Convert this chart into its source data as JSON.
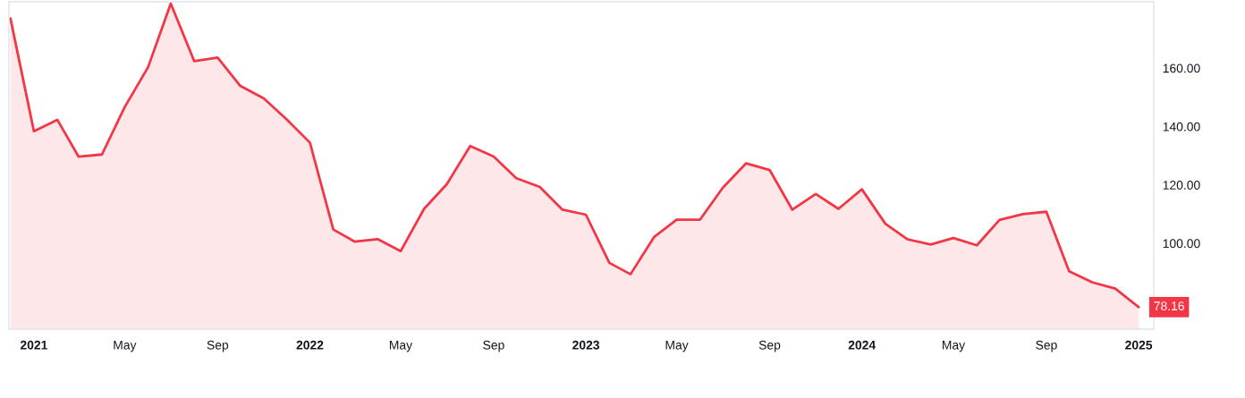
{
  "chart_data": {
    "type": "area",
    "x": [
      "2020-12",
      "2021-01",
      "2021-02",
      "2021-03",
      "2021-04",
      "2021-05",
      "2021-06",
      "2021-07",
      "2021-08",
      "2021-09",
      "2021-10",
      "2021-11",
      "2021-12",
      "2022-01",
      "2022-02",
      "2022-03",
      "2022-04",
      "2022-05",
      "2022-06",
      "2022-07",
      "2022-08",
      "2022-09",
      "2022-10",
      "2022-11",
      "2022-12",
      "2023-01",
      "2023-02",
      "2023-03",
      "2023-04",
      "2023-05",
      "2023-06",
      "2023-07",
      "2023-08",
      "2023-09",
      "2023-10",
      "2023-11",
      "2023-12",
      "2024-01",
      "2024-02",
      "2024-03",
      "2024-04",
      "2024-05",
      "2024-06",
      "2024-07",
      "2024-08",
      "2024-09",
      "2024-10",
      "2024-11",
      "2024-12",
      "2025-01"
    ],
    "series": [
      {
        "color": "#f23645",
        "values": [
          177.0,
          138.4,
          142.3,
          129.7,
          130.4,
          146.6,
          160.3,
          182.1,
          162.4,
          163.6,
          153.9,
          149.6,
          142.5,
          134.5,
          104.7,
          100.6,
          101.4,
          97.3,
          111.8,
          120.2,
          133.3,
          129.7,
          122.3,
          119.3,
          111.5,
          109.8,
          93.3,
          89.4,
          102.1,
          108.1,
          108.1,
          119.0,
          127.4,
          125.1,
          111.5,
          116.9,
          111.8,
          118.5,
          106.7,
          101.4,
          99.6,
          101.8,
          99.3,
          108.0,
          110.0,
          110.8,
          90.4,
          86.6,
          84.5,
          78.16
        ],
        "value_labels": [
          null,
          null,
          null,
          null,
          null,
          null,
          null,
          null,
          null,
          null,
          null,
          null,
          null,
          null,
          null,
          null,
          null,
          null,
          null,
          null,
          null,
          null,
          null,
          null,
          null,
          null,
          null,
          null,
          null,
          null,
          null,
          null,
          null,
          null,
          null,
          null,
          null,
          null,
          null,
          null,
          null,
          null,
          null,
          null,
          null,
          null,
          null,
          null,
          null,
          "78.16"
        ]
      }
    ],
    "xlim": [
      "2020-11-29",
      "2025-01-21"
    ],
    "ylim": [
      70.6,
      182.7
    ],
    "xticks": [
      {
        "value": "2021-01",
        "label": "2021"
      },
      {
        "value": "2021-05",
        "label": "May"
      },
      {
        "value": "2021-09",
        "label": "Sep"
      },
      {
        "value": "2022-01",
        "label": "2022"
      },
      {
        "value": "2022-05",
        "label": "May"
      },
      {
        "value": "2022-09",
        "label": "Sep"
      },
      {
        "value": "2023-01",
        "label": "2023"
      },
      {
        "value": "2023-05",
        "label": "May"
      },
      {
        "value": "2023-09",
        "label": "Sep"
      },
      {
        "value": "2024-01",
        "label": "2024"
      },
      {
        "value": "2024-05",
        "label": "May"
      },
      {
        "value": "2024-09",
        "label": "Sep"
      },
      {
        "value": "2025-01",
        "label": "2025"
      }
    ],
    "yticks": [
      {
        "value": 100,
        "label": "100.00"
      },
      {
        "value": 120,
        "label": "120.00"
      },
      {
        "value": 140,
        "label": "140.00"
      },
      {
        "value": 160,
        "label": "160.00"
      }
    ]
  }
}
